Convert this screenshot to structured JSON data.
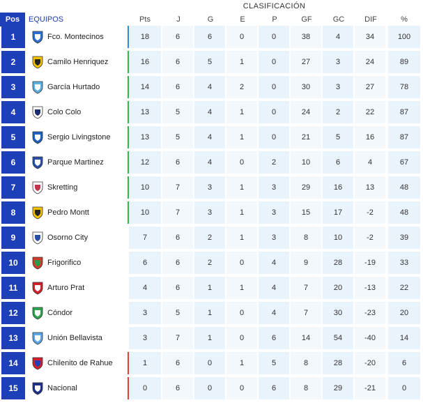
{
  "title": "CLASIFICACIÓN",
  "headers": {
    "pos": "Pos",
    "team": "EQUIPOS",
    "pts": "Pts",
    "j": "J",
    "g": "G",
    "e": "E",
    "p": "P",
    "gf": "GF",
    "gc": "GC",
    "dif": "DIF",
    "pct": "%"
  },
  "colors": {
    "accent": "#1d3fb8",
    "blue_bar": "#2f8be0",
    "green_bar": "#2db84b",
    "red_bar": "#e0403a",
    "cell_bg": "#e8f3fb"
  },
  "rows": [
    {
      "pos": "1",
      "team": "Fco. Montecinos",
      "icon": "crest-blue-icon",
      "pts": "18",
      "j": "6",
      "g": "6",
      "e": "0",
      "p": "0",
      "gf": "38",
      "gc": "4",
      "dif": "34",
      "pct": "100",
      "zone": "blue"
    },
    {
      "pos": "2",
      "team": "Camilo Henriquez",
      "icon": "crest-yellow-icon",
      "pts": "16",
      "j": "6",
      "g": "5",
      "e": "1",
      "p": "0",
      "gf": "27",
      "gc": "3",
      "dif": "24",
      "pct": "89",
      "zone": "green"
    },
    {
      "pos": "3",
      "team": "García Hurtado",
      "icon": "crest-stripes-icon",
      "pts": "14",
      "j": "6",
      "g": "4",
      "e": "2",
      "p": "0",
      "gf": "30",
      "gc": "3",
      "dif": "27",
      "pct": "78",
      "zone": "green"
    },
    {
      "pos": "4",
      "team": "Colo Colo",
      "icon": "crest-colocolo-icon",
      "pts": "13",
      "j": "5",
      "g": "4",
      "e": "1",
      "p": "0",
      "gf": "24",
      "gc": "2",
      "dif": "22",
      "pct": "87",
      "zone": "green"
    },
    {
      "pos": "5",
      "team": "Sergio Livingstone",
      "icon": "crest-bird-icon",
      "pts": "13",
      "j": "5",
      "g": "4",
      "e": "1",
      "p": "0",
      "gf": "21",
      "gc": "5",
      "dif": "16",
      "pct": "87",
      "zone": "green"
    },
    {
      "pos": "6",
      "team": "Parque Martinez",
      "icon": "crest-shield-icon",
      "pts": "12",
      "j": "6",
      "g": "4",
      "e": "0",
      "p": "2",
      "gf": "10",
      "gc": "6",
      "dif": "4",
      "pct": "67",
      "zone": "green"
    },
    {
      "pos": "7",
      "team": "Skretting",
      "icon": "crest-round-red-icon",
      "pts": "10",
      "j": "7",
      "g": "3",
      "e": "1",
      "p": "3",
      "gf": "29",
      "gc": "16",
      "dif": "13",
      "pct": "48",
      "zone": "green"
    },
    {
      "pos": "8",
      "team": "Pedro Montt",
      "icon": "crest-yellow-icon",
      "pts": "10",
      "j": "7",
      "g": "3",
      "e": "1",
      "p": "3",
      "gf": "15",
      "gc": "17",
      "dif": "-2",
      "pct": "48",
      "zone": "green"
    },
    {
      "pos": "9",
      "team": "Osorno City",
      "icon": "crest-round-blue-icon",
      "pts": "7",
      "j": "6",
      "g": "2",
      "e": "1",
      "p": "3",
      "gf": "8",
      "gc": "10",
      "dif": "-2",
      "pct": "39",
      "zone": "none"
    },
    {
      "pos": "10",
      "team": "Frigorifico",
      "icon": "crest-red-green-icon",
      "pts": "6",
      "j": "6",
      "g": "2",
      "e": "0",
      "p": "4",
      "gf": "9",
      "gc": "28",
      "dif": "-19",
      "pct": "33",
      "zone": "none"
    },
    {
      "pos": "11",
      "team": "Arturo Prat",
      "icon": "crest-red-stripes-icon",
      "pts": "4",
      "j": "6",
      "g": "1",
      "e": "1",
      "p": "4",
      "gf": "7",
      "gc": "20",
      "dif": "-13",
      "pct": "22",
      "zone": "none"
    },
    {
      "pos": "12",
      "team": "Cóndor",
      "icon": "crest-green-icon",
      "pts": "3",
      "j": "5",
      "g": "1",
      "e": "0",
      "p": "4",
      "gf": "7",
      "gc": "30",
      "dif": "-23",
      "pct": "20",
      "zone": "none"
    },
    {
      "pos": "13",
      "team": "Unión Bellavista",
      "icon": "crest-cloud-icon",
      "pts": "3",
      "j": "7",
      "g": "1",
      "e": "0",
      "p": "6",
      "gf": "14",
      "gc": "54",
      "dif": "-40",
      "pct": "14",
      "zone": "none"
    },
    {
      "pos": "14",
      "team": "Chilenito de Rahue",
      "icon": "crest-red-blue-icon",
      "pts": "1",
      "j": "6",
      "g": "0",
      "e": "1",
      "p": "5",
      "gf": "8",
      "gc": "28",
      "dif": "-20",
      "pct": "6",
      "zone": "red"
    },
    {
      "pos": "15",
      "team": "Nacional",
      "icon": "crest-navy-icon",
      "pts": "0",
      "j": "6",
      "g": "0",
      "e": "0",
      "p": "6",
      "gf": "8",
      "gc": "29",
      "dif": "-21",
      "pct": "0",
      "zone": "red"
    }
  ]
}
